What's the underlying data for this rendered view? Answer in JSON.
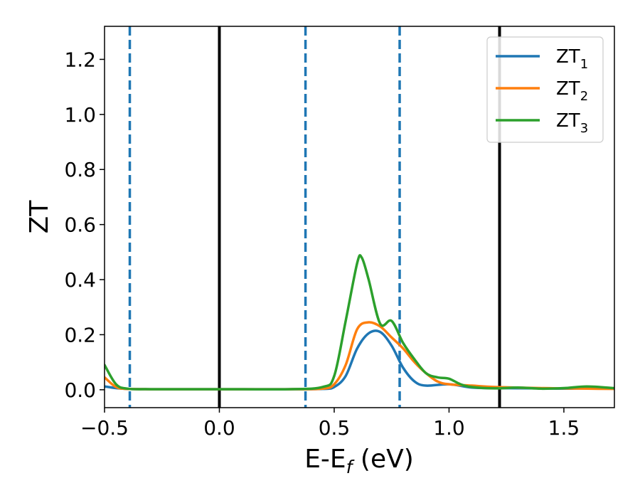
{
  "chart_data": {
    "type": "line",
    "xlabel_main": "E-E",
    "xlabel_sub": "f",
    "xlabel_unit": " (eV)",
    "ylabel": "ZT",
    "xlim": [
      -0.5,
      1.72
    ],
    "ylim": [
      -0.065,
      1.32
    ],
    "x_ticks": [
      -0.5,
      0.0,
      0.5,
      1.0,
      1.5
    ],
    "x_tick_labels": [
      "−0.5",
      "0.0",
      "0.5",
      "1.0",
      "1.5"
    ],
    "y_ticks": [
      0.0,
      0.2,
      0.4,
      0.6,
      0.8,
      1.0,
      1.2
    ],
    "y_tick_labels": [
      "0.0",
      "0.2",
      "0.4",
      "0.6",
      "0.8",
      "1.0",
      "1.2"
    ],
    "grid": false,
    "legend_position": "top-right",
    "vlines": [
      {
        "x": -0.39,
        "style": "dashed",
        "color": "#1f77b4"
      },
      {
        "x": 0.0,
        "style": "solid",
        "color": "#000000"
      },
      {
        "x": 0.375,
        "style": "dashed",
        "color": "#1f77b4"
      },
      {
        "x": 0.785,
        "style": "dashed",
        "color": "#1f77b4"
      },
      {
        "x": 1.22,
        "style": "solid",
        "color": "#000000"
      }
    ],
    "series": [
      {
        "name": "ZT",
        "sub": "1",
        "color": "#1f77b4",
        "x": [
          -0.5,
          -0.45,
          -0.4,
          -0.3,
          0.0,
          0.3,
          0.45,
          0.5,
          0.55,
          0.6,
          0.65,
          0.7,
          0.75,
          0.8,
          0.85,
          0.9,
          1.0,
          1.1,
          1.2,
          1.4,
          1.5,
          1.6,
          1.72
        ],
        "y": [
          0.012,
          0.006,
          0.003,
          0.002,
          0.002,
          0.002,
          0.003,
          0.01,
          0.05,
          0.15,
          0.205,
          0.21,
          0.16,
          0.08,
          0.03,
          0.015,
          0.02,
          0.008,
          0.006,
          0.005,
          0.004,
          0.005,
          0.004
        ]
      },
      {
        "name": "ZT",
        "sub": "2",
        "color": "#ff7f0e",
        "x": [
          -0.5,
          -0.45,
          -0.4,
          -0.3,
          0.0,
          0.3,
          0.45,
          0.5,
          0.55,
          0.6,
          0.65,
          0.7,
          0.75,
          0.8,
          0.85,
          0.9,
          0.95,
          1.0,
          1.1,
          1.2,
          1.4,
          1.5,
          1.6,
          1.72
        ],
        "y": [
          0.045,
          0.01,
          0.003,
          0.002,
          0.002,
          0.002,
          0.004,
          0.02,
          0.09,
          0.22,
          0.245,
          0.23,
          0.19,
          0.15,
          0.1,
          0.06,
          0.03,
          0.02,
          0.015,
          0.01,
          0.006,
          0.005,
          0.004,
          0.003
        ]
      },
      {
        "name": "ZT",
        "sub": "3",
        "color": "#2ca02c",
        "x": [
          -0.5,
          -0.45,
          -0.4,
          -0.3,
          0.0,
          0.3,
          0.45,
          0.5,
          0.55,
          0.6,
          0.62,
          0.65,
          0.7,
          0.75,
          0.8,
          0.85,
          0.9,
          0.95,
          1.0,
          1.05,
          1.1,
          1.2,
          1.3,
          1.4,
          1.5,
          1.6,
          1.72
        ],
        "y": [
          0.09,
          0.02,
          0.004,
          0.002,
          0.002,
          0.002,
          0.01,
          0.05,
          0.25,
          0.46,
          0.48,
          0.4,
          0.24,
          0.25,
          0.17,
          0.11,
          0.06,
          0.045,
          0.04,
          0.02,
          0.01,
          0.005,
          0.008,
          0.004,
          0.006,
          0.012,
          0.006
        ]
      }
    ]
  }
}
